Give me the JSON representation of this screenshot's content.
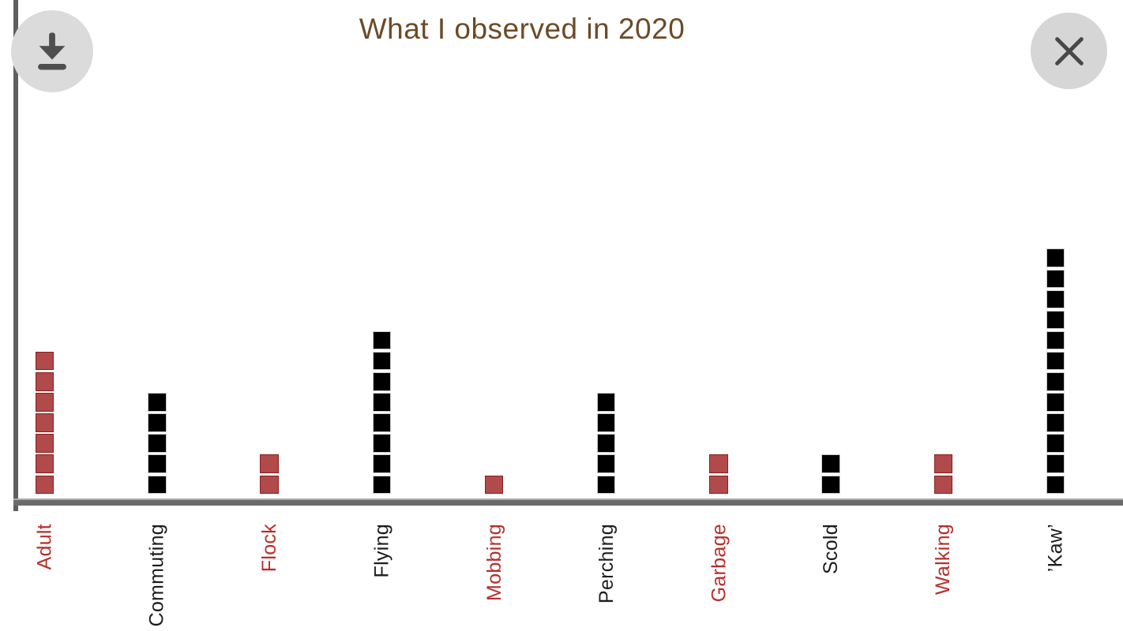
{
  "overlay": {
    "title": "What I observed in 2020",
    "buttons": {
      "download": "download-icon",
      "close": "close-icon"
    }
  },
  "chart_data": {
    "type": "bar",
    "variant": "unit-square stacked bars (waffle columns)",
    "title": "What I observed in 2020",
    "categories": [
      "Adult",
      "Commuting",
      "Flock",
      "Flying",
      "Mobbing",
      "Perching",
      "Garbage",
      "Scold",
      "Walking",
      "’Kaw’"
    ],
    "values": [
      7,
      5,
      2,
      8,
      1,
      5,
      2,
      2,
      2,
      12
    ],
    "columns": [
      {
        "label": "Adult",
        "count": 7,
        "palette": "red"
      },
      {
        "label": "Commuting",
        "count": 5,
        "palette": "black"
      },
      {
        "label": "Flock",
        "count": 2,
        "palette": "red"
      },
      {
        "label": "Flying",
        "count": 8,
        "palette": "black"
      },
      {
        "label": "Mobbing",
        "count": 1,
        "palette": "red"
      },
      {
        "label": "Perching",
        "count": 5,
        "palette": "black"
      },
      {
        "label": "Garbage",
        "count": 2,
        "palette": "red"
      },
      {
        "label": "Scold",
        "count": 2,
        "palette": "black"
      },
      {
        "label": "Walking",
        "count": 2,
        "palette": "red"
      },
      {
        "label": "’Kaw’",
        "count": 12,
        "palette": "black"
      }
    ],
    "xlabel": "",
    "ylabel": "",
    "ylim": [
      0,
      12
    ],
    "grid": false,
    "legend": false,
    "tick_label_rotation_deg": -90
  },
  "colors": {
    "title": "#6d4a28",
    "red_fill": "#b14a4a",
    "red_border": "#8b1e1e",
    "black_fill": "#000000",
    "black_border": "#c9c9c9",
    "red_label": "#b5302c",
    "black_label": "#1c1c1c",
    "axis": "#5e5e5e",
    "button_bg": "#dbdbdb",
    "button_icon": "#4e4e4e"
  }
}
